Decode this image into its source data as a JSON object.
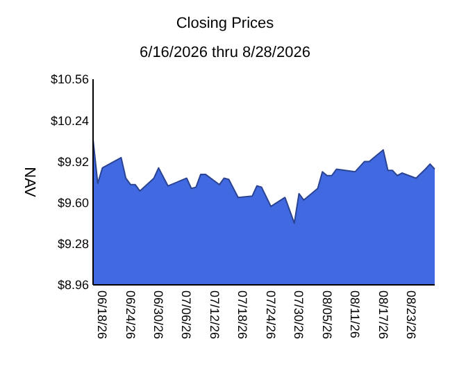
{
  "chart_data": {
    "type": "area",
    "title": "Closing Prices",
    "subtitle": "6/16/2026 thru 8/28/2026",
    "ylabel": "NAV",
    "x": [
      "2026-06-16",
      "2026-06-17",
      "2026-06-18",
      "2026-06-22",
      "2026-06-23",
      "2026-06-24",
      "2026-06-25",
      "2026-06-26",
      "2026-06-29",
      "2026-06-30",
      "2026-07-02",
      "2026-07-06",
      "2026-07-07",
      "2026-07-08",
      "2026-07-09",
      "2026-07-10",
      "2026-07-13",
      "2026-07-14",
      "2026-07-15",
      "2026-07-17",
      "2026-07-20",
      "2026-07-21",
      "2026-07-22",
      "2026-07-24",
      "2026-07-27",
      "2026-07-29",
      "2026-07-30",
      "2026-07-31",
      "2026-08-03",
      "2026-08-04",
      "2026-08-05",
      "2026-08-06",
      "2026-08-07",
      "2026-08-11",
      "2026-08-13",
      "2026-08-14",
      "2026-08-17",
      "2026-08-18",
      "2026-08-19",
      "2026-08-20",
      "2026-08-21",
      "2026-08-24",
      "2026-08-26",
      "2026-08-27",
      "2026-08-28"
    ],
    "series": [
      {
        "color": "#4169e1",
        "values": [
          10.09,
          9.75,
          9.87,
          9.95,
          9.79,
          9.74,
          9.74,
          9.69,
          9.79,
          9.87,
          9.73,
          9.79,
          9.71,
          9.72,
          9.82,
          9.82,
          9.74,
          9.79,
          9.78,
          9.64,
          9.65,
          9.73,
          9.72,
          9.57,
          9.64,
          9.44,
          9.67,
          9.62,
          9.71,
          9.84,
          9.81,
          9.81,
          9.86,
          9.84,
          9.92,
          9.92,
          10.01,
          9.85,
          9.85,
          9.81,
          9.83,
          9.79,
          9.86,
          9.9,
          9.86
        ]
      }
    ],
    "xlim": [
      "2026-06-16",
      "2026-08-28"
    ],
    "xticks": [
      {
        "value": "2026-06-18",
        "label": "06/18/26"
      },
      {
        "value": "2026-06-24",
        "label": "06/24/26"
      },
      {
        "value": "2026-06-30",
        "label": "06/30/26"
      },
      {
        "value": "2026-07-06",
        "label": "07/06/26"
      },
      {
        "value": "2026-07-12",
        "label": "07/12/26"
      },
      {
        "value": "2026-07-18",
        "label": "07/18/26"
      },
      {
        "value": "2026-07-24",
        "label": "07/24/26"
      },
      {
        "value": "2026-07-30",
        "label": "07/30/26"
      },
      {
        "value": "2026-08-05",
        "label": "08/05/26"
      },
      {
        "value": "2026-08-11",
        "label": "08/11/26"
      },
      {
        "value": "2026-08-17",
        "label": "08/17/26"
      },
      {
        "value": "2026-08-23",
        "label": "08/23/26"
      }
    ],
    "ylim": [
      8.96,
      10.56
    ],
    "yticks": [
      {
        "value": 8.96,
        "label": "$8.96"
      },
      {
        "value": 9.28,
        "label": "$9.28"
      },
      {
        "value": 9.6,
        "label": "$9.60"
      },
      {
        "value": 9.92,
        "label": "$9.92"
      },
      {
        "value": 10.24,
        "label": "$10.24"
      },
      {
        "value": 10.56,
        "label": "$10.56"
      }
    ]
  }
}
